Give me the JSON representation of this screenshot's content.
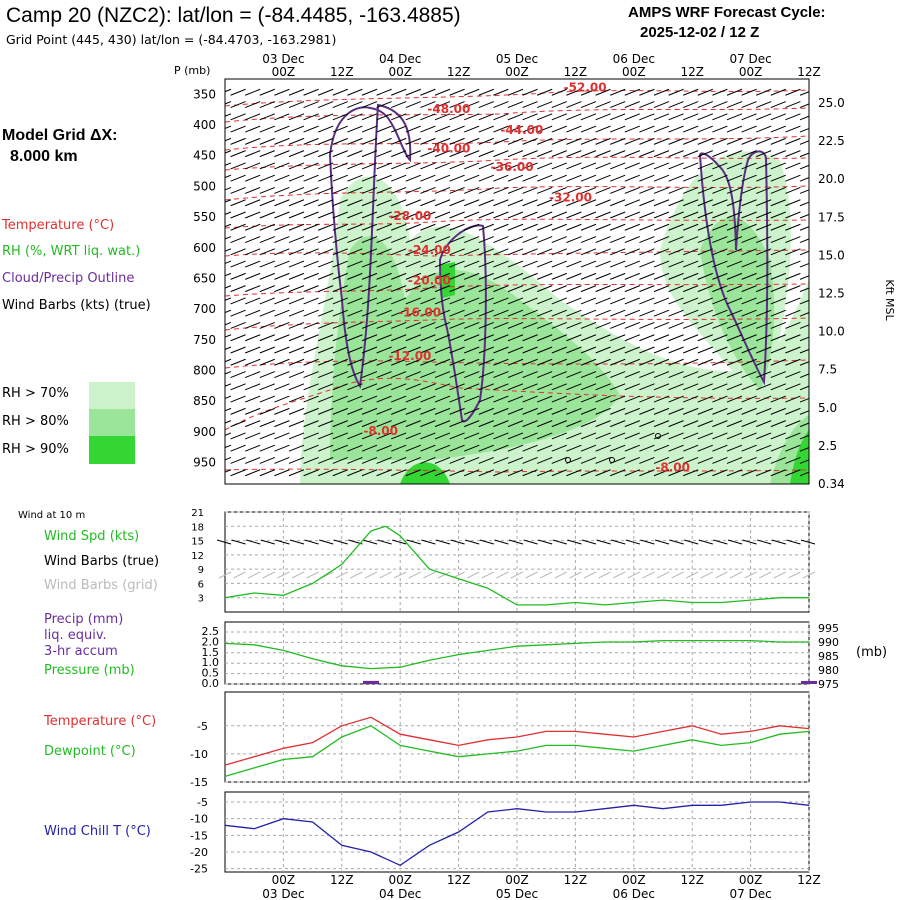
{
  "header": {
    "title": "Camp 20 (NZC2):  lat/lon = (-84.4485, -163.4885)",
    "subtitle": "Grid Point (445, 430) lat/lon = (-84.4703, -163.2981)",
    "cycle_label": "AMPS WRF Forecast Cycle:",
    "cycle_value": "2025-12-02 / 12  Z"
  },
  "left_panel": {
    "grid_label": "Model Grid ΔX:",
    "grid_value": "8.000 km",
    "legend": {
      "temperature": "Temperature (°C)",
      "rh": "RH (%, WRT liq. wat.)",
      "cloud": "Cloud/Precip Outline",
      "wind": "Wind Barbs (kts) (true)"
    },
    "rh_thresholds": [
      "RH > 70%",
      "RH > 80%",
      "RH > 90%"
    ]
  },
  "axis_labels": {
    "pressure": "P (mb)",
    "height": "Kft MSL",
    "wind10": "Wind at 10 m"
  },
  "colors": {
    "temperature": "#e03030",
    "dewpoint": "#22bb22",
    "cloud": "#5a2d82",
    "windchill": "#2222aa",
    "rh70": "#cdf3cd",
    "rh80": "#9ae59a",
    "rh90": "#33d633",
    "grid": "#aaaaaa",
    "pressure": "#22bb22",
    "precip": "#6a2d9a",
    "wind_speed": "#22bb22",
    "grid_barb": "#bbbbbb"
  },
  "chart_data": [
    {
      "type": "heatmap",
      "name": "cross-section",
      "time_ticks_top": [
        "00Z",
        "12Z",
        "00Z",
        "12Z",
        "00Z",
        "12Z",
        "00Z",
        "12Z",
        "00Z",
        "12Z"
      ],
      "time_ticks_bottom": [
        "00Z",
        "12Z",
        "00Z",
        "12Z",
        "00Z",
        "12Z",
        "00Z",
        "12Z",
        "00Z",
        "12Z"
      ],
      "date_labels": [
        "03 Dec",
        "04 Dec",
        "05 Dec",
        "06 Dec",
        "07 Dec"
      ],
      "x_range_hours": [
        12,
        132
      ],
      "pressure_ticks": [
        350,
        400,
        450,
        500,
        550,
        600,
        650,
        700,
        750,
        800,
        850,
        900,
        950
      ],
      "height_ticks": [
        "25.0",
        "22.5",
        "20.0",
        "17.5",
        "15.0",
        "12.5",
        "10.0",
        "7.5",
        "5.0",
        "2.5",
        "0.34"
      ],
      "temperature_isotherm_labels": [
        {
          "label": "-52.00",
          "t": 86,
          "p": 345
        },
        {
          "label": "-48.00",
          "t": 58,
          "p": 380
        },
        {
          "label": "-44.00",
          "t": 73,
          "p": 415
        },
        {
          "label": "-40.00",
          "t": 58,
          "p": 445
        },
        {
          "label": "-36.00",
          "t": 71,
          "p": 475
        },
        {
          "label": "-32.00",
          "t": 83,
          "p": 525
        },
        {
          "label": "-28.00",
          "t": 50,
          "p": 555
        },
        {
          "label": "-24.00",
          "t": 54,
          "p": 610
        },
        {
          "label": "-20.00",
          "t": 54,
          "p": 660
        },
        {
          "label": "-16.00",
          "t": 52,
          "p": 712
        },
        {
          "label": "-12.00",
          "t": 50,
          "p": 783
        },
        {
          "label": "-8.00",
          "t": 44,
          "p": 905
        },
        {
          "label": "-8.00",
          "t": 104,
          "p": 965
        }
      ]
    },
    {
      "type": "line",
      "name": "wind-10m",
      "label_speed": "Wind Spd (kts)",
      "label_barbs_true": "Wind Barbs (true)",
      "label_barbs_grid": "Wind Barbs (grid)",
      "y_ticks": [
        "21",
        "18",
        "15",
        "12",
        "9",
        "6",
        "3"
      ],
      "ylim": [
        0,
        21
      ],
      "x": [
        12,
        18,
        24,
        30,
        36,
        42,
        45,
        48,
        54,
        60,
        66,
        72,
        78,
        84,
        90,
        96,
        102,
        108,
        114,
        120,
        126,
        132
      ],
      "speed": [
        3,
        4,
        3.5,
        6,
        10,
        17,
        18,
        16,
        9,
        7,
        5,
        1.5,
        1.5,
        2,
        1.5,
        2,
        2.5,
        2,
        2,
        2.5,
        3,
        3
      ]
    },
    {
      "type": "line",
      "name": "precip-pressure",
      "label_precip": "Precip (mm)",
      "label_precip2": "liq. equiv.",
      "label_precip3": "3-hr accum",
      "label_pressure": "Pressure (mb)",
      "unit_right": "(mb)",
      "left_ticks": [
        "2.5",
        "2.0",
        "1.5",
        "1.0",
        "0.5",
        "0.0"
      ],
      "right_ticks": [
        "995",
        "990",
        "985",
        "980",
        "975"
      ],
      "pressure_ylim": [
        975,
        995
      ],
      "x": [
        12,
        18,
        24,
        30,
        36,
        42,
        48,
        54,
        60,
        66,
        72,
        78,
        84,
        90,
        96,
        102,
        108,
        114,
        120,
        126,
        132
      ],
      "pressure": [
        989.5,
        989,
        987,
        984,
        981.5,
        980.5,
        981,
        983.5,
        985.5,
        987,
        988.5,
        989,
        989.5,
        990,
        990,
        990.5,
        990.5,
        990.5,
        990.5,
        990,
        990
      ],
      "precip_x": [
        42,
        132
      ],
      "precip": [
        0.15,
        0.05
      ]
    },
    {
      "type": "line",
      "name": "temperature-dewpoint",
      "label_temp": "Temperature (°C)",
      "label_dew": "Dewpoint (°C)",
      "y_ticks": [
        "-5",
        "-10",
        "-15"
      ],
      "ylim": [
        -15,
        1
      ],
      "x": [
        12,
        18,
        24,
        30,
        36,
        42,
        48,
        54,
        60,
        66,
        72,
        78,
        84,
        90,
        96,
        102,
        108,
        114,
        120,
        126,
        132
      ],
      "temperature": [
        -12,
        -10.5,
        -9,
        -8,
        -5,
        -3.5,
        -6.5,
        -7.5,
        -8.5,
        -7.5,
        -7,
        -6,
        -6,
        -6.5,
        -7,
        -6,
        -5,
        -6.5,
        -6,
        -5,
        -5.5
      ],
      "dewpoint": [
        -14,
        -12.5,
        -11,
        -10.5,
        -7,
        -5,
        -8.5,
        -9.5,
        -10.5,
        -10,
        -9.5,
        -8.5,
        -8.5,
        -9,
        -9.5,
        -8.5,
        -7.5,
        -8.5,
        -8,
        -6.5,
        -6
      ]
    },
    {
      "type": "line",
      "name": "wind-chill",
      "label": "Wind Chill T (°C)",
      "y_ticks": [
        "-5",
        "-10",
        "-15",
        "-20",
        "-25"
      ],
      "ylim": [
        -26,
        -2
      ],
      "x": [
        12,
        18,
        24,
        30,
        36,
        42,
        48,
        54,
        60,
        66,
        72,
        78,
        84,
        90,
        96,
        102,
        108,
        114,
        120,
        126,
        132
      ],
      "wind_chill": [
        -12,
        -13,
        -10,
        -11,
        -18,
        -20,
        -24,
        -18,
        -14,
        -8,
        -7,
        -8,
        -8,
        -7,
        -6,
        -7,
        -6,
        -6,
        -5,
        -5,
        -6
      ]
    }
  ]
}
